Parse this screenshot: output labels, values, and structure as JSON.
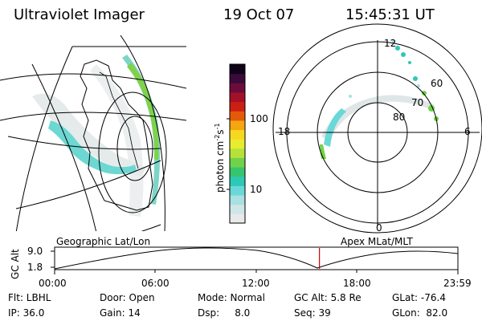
{
  "header": {
    "title": "Ultraviolet Imager",
    "date": "19 Oct 07",
    "time": "15:45:31 UT"
  },
  "colorbar": {
    "label": "photon cm",
    "label_sup1": "-2",
    "label_mid": "s",
    "label_sup2": "-1",
    "ticks": [
      "100",
      "10"
    ],
    "colors": [
      "#e9e9e9",
      "#cfe6e8",
      "#a8e0e3",
      "#6ad8d8",
      "#2ec9b5",
      "#37c46e",
      "#6fd24a",
      "#b5e13a",
      "#e7ec2e",
      "#f6d820",
      "#f3a60f",
      "#e45a0a",
      "#cc1f13",
      "#a3102a",
      "#6b0c3b",
      "#3a0a39",
      "#0f0318"
    ]
  },
  "panels": {
    "left_label": "Geographic Lat/Lon",
    "right_label": "Apex MLat/MLT"
  },
  "polar": {
    "mlt_top": "12",
    "mlt_left": "18",
    "mlt_right": "6",
    "mlt_bottom": "0",
    "lat_rings": [
      "60",
      "70",
      "80"
    ]
  },
  "altitude_plot": {
    "ylabel": "GC Alt",
    "y_ticks": [
      "9.0",
      "1.8"
    ],
    "x_ticks": [
      "00:00",
      "06:00",
      "12:00",
      "18:00",
      "23:59"
    ],
    "marker_color": "#cc0000",
    "marker_time_hours": 15.76
  },
  "info": {
    "row1": [
      "Flt: LBHL",
      "Door: Open",
      "Mode: Normal",
      "GC Alt: 5.8 Re",
      "GLat: -76.4"
    ],
    "row2": [
      "IP: 36.0",
      "Gain: 14",
      "Dsp:     8.0",
      "Seq: 39",
      "GLon:  82.0"
    ]
  }
}
